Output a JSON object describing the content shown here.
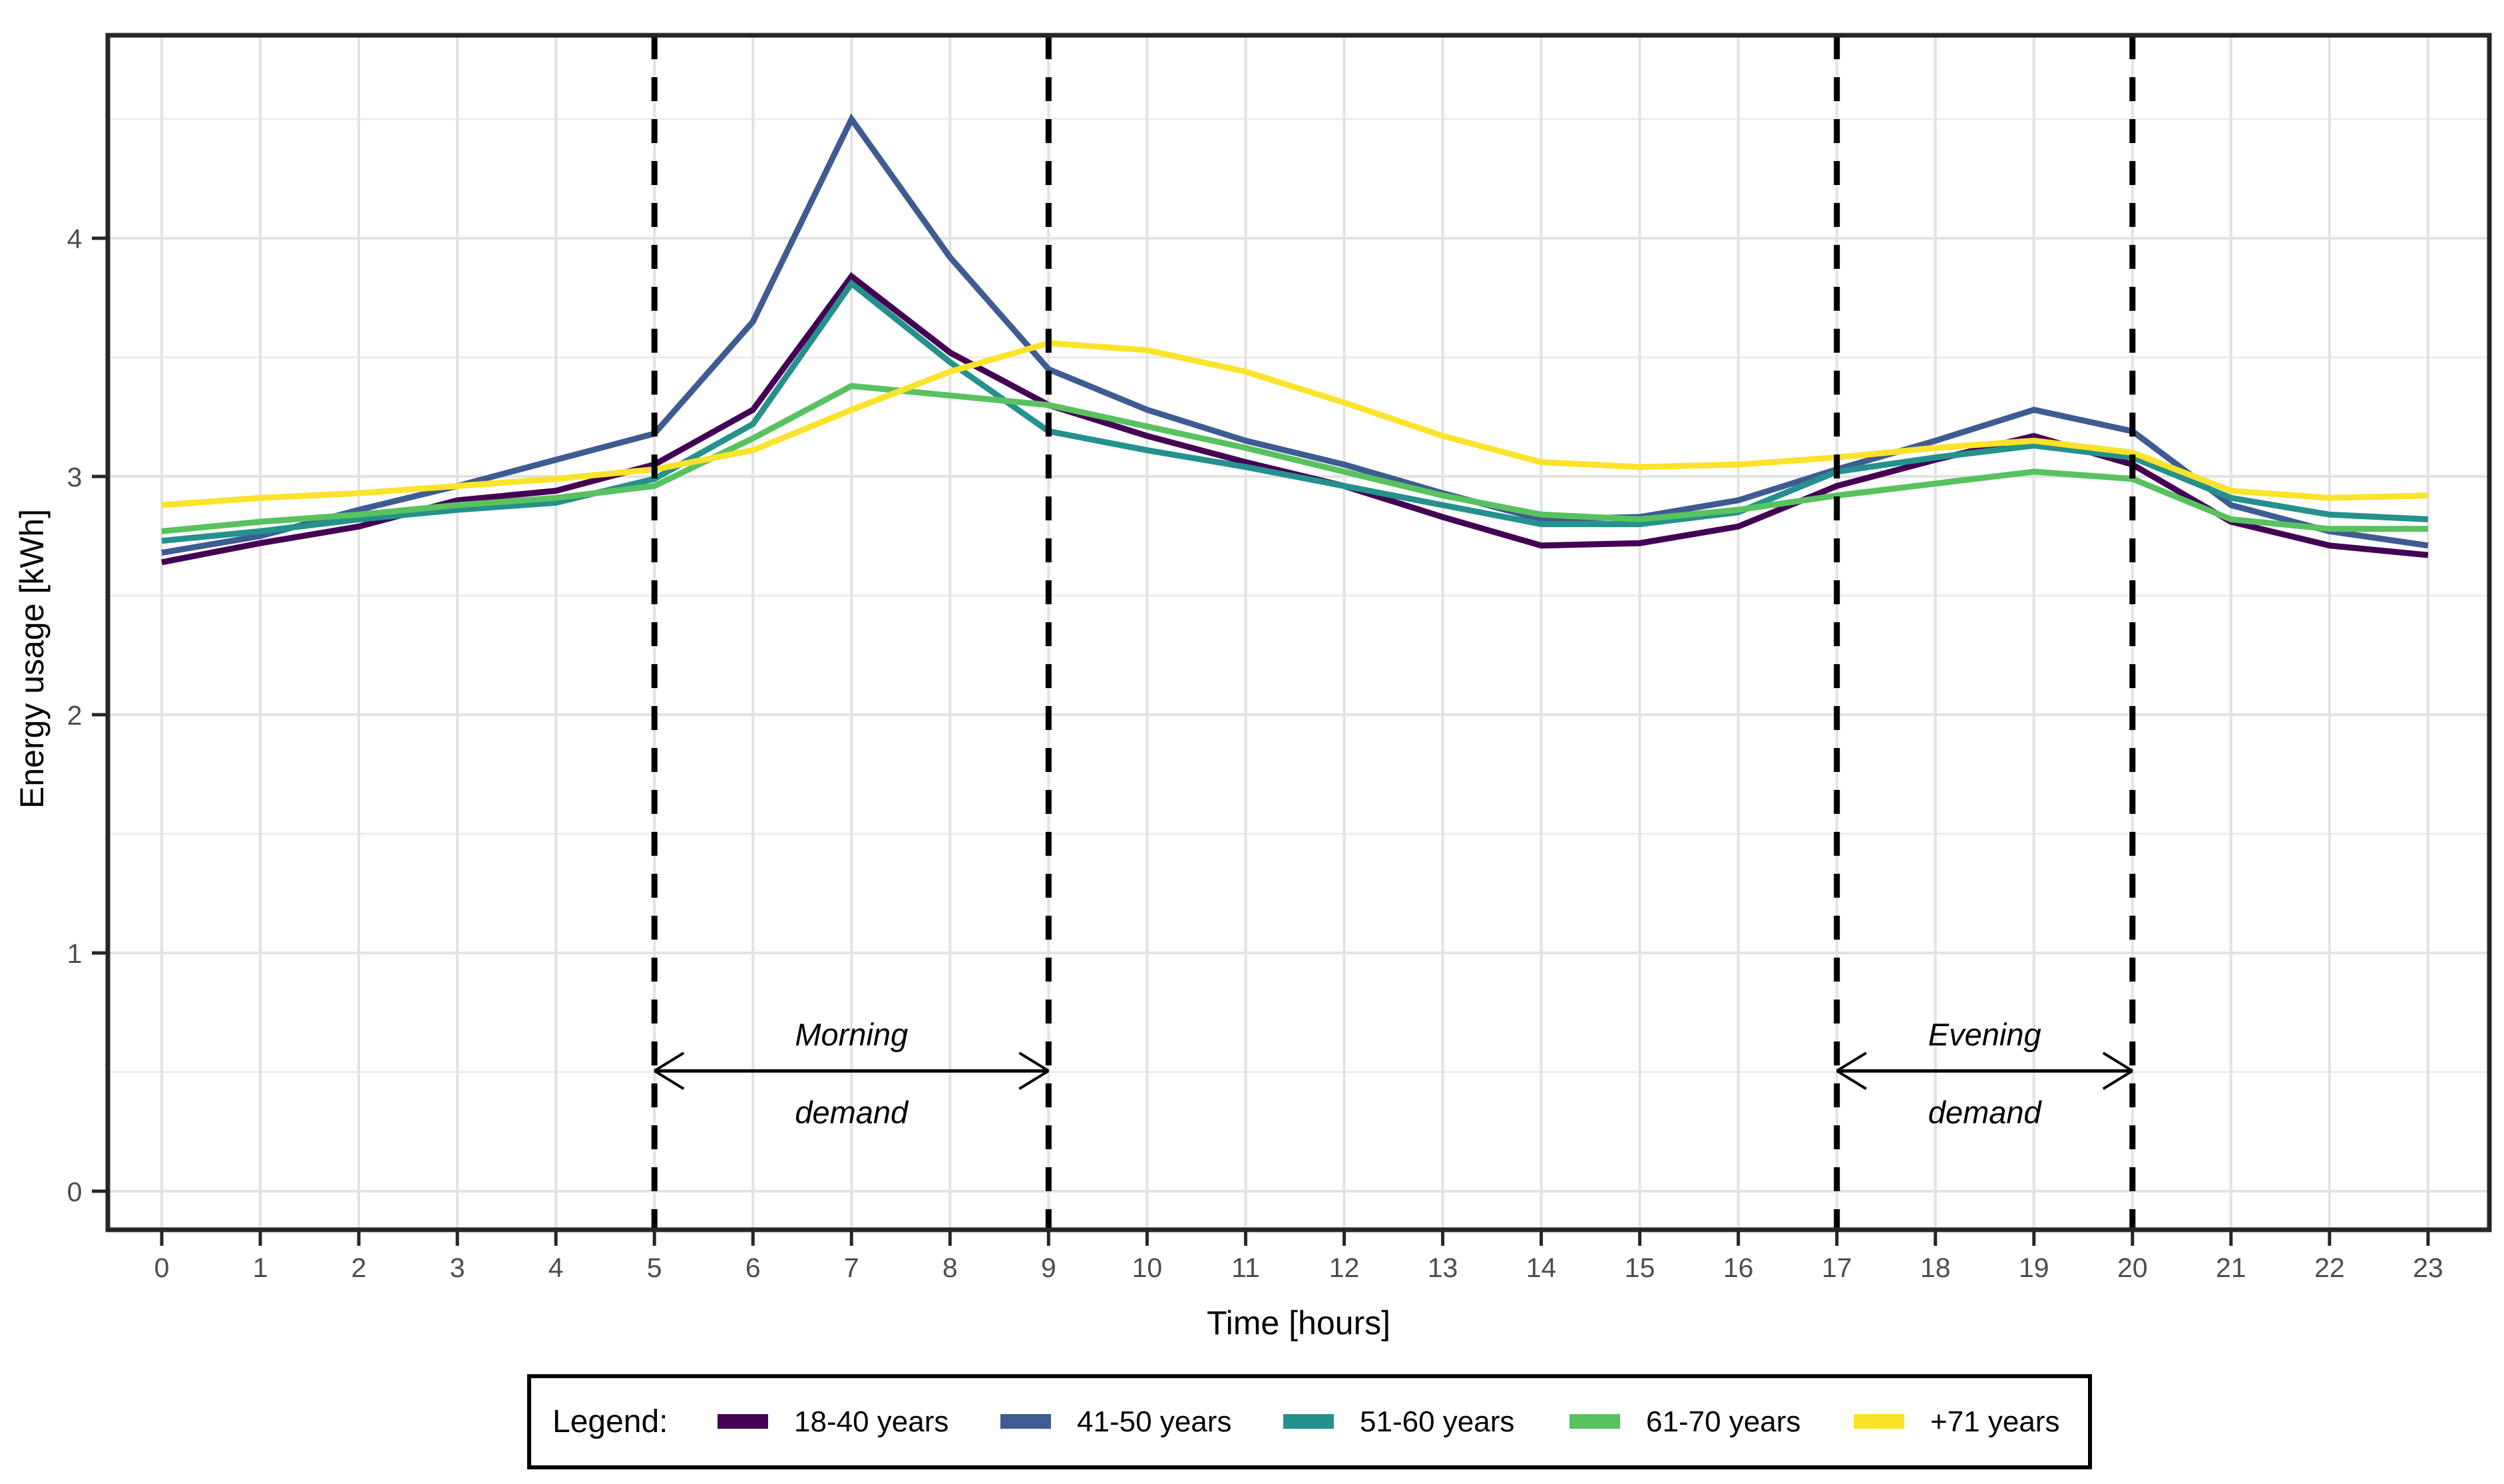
{
  "chart_data": {
    "type": "line",
    "title": "",
    "xlabel": "Time [hours]",
    "ylabel": "Energy usage [kWh]",
    "x": [
      0,
      1,
      2,
      3,
      4,
      5,
      6,
      7,
      8,
      9,
      10,
      11,
      12,
      13,
      14,
      15,
      16,
      17,
      18,
      19,
      20,
      21,
      22,
      23
    ],
    "x_tick_labels": [
      "0",
      "1",
      "2",
      "3",
      "4",
      "5",
      "6",
      "7",
      "8",
      "9",
      "10",
      "11",
      "12",
      "13",
      "14",
      "15",
      "16",
      "17",
      "18",
      "19",
      "20",
      "21",
      "22",
      "23"
    ],
    "y_ticks": [
      0,
      1,
      2,
      3,
      4
    ],
    "y_minor_gridlines": [
      0.5,
      1.5,
      2.5,
      3.5,
      4.5
    ],
    "ylim": [
      -0.16,
      4.85
    ],
    "xlim": [
      -0.55,
      23.6
    ],
    "grid": "major and minor horizontal, hourly vertical, light gray on white",
    "legend_position": "bottom",
    "series": [
      {
        "name": "18-40 years",
        "color": "#440154",
        "values": [
          2.64,
          2.72,
          2.79,
          2.9,
          2.94,
          3.05,
          3.28,
          3.84,
          3.52,
          3.3,
          3.17,
          3.06,
          2.96,
          2.83,
          2.71,
          2.72,
          2.79,
          2.96,
          3.07,
          3.17,
          3.05,
          2.81,
          2.71,
          2.67
        ]
      },
      {
        "name": "41-50 years",
        "color": "#3e5b92",
        "values": [
          2.68,
          2.75,
          2.86,
          2.96,
          3.07,
          3.18,
          3.65,
          4.5,
          3.92,
          3.45,
          3.28,
          3.15,
          3.05,
          2.93,
          2.82,
          2.83,
          2.9,
          3.03,
          3.15,
          3.28,
          3.19,
          2.88,
          2.77,
          2.71
        ]
      },
      {
        "name": "51-60 years",
        "color": "#24918c",
        "values": [
          2.73,
          2.77,
          2.82,
          2.86,
          2.89,
          2.99,
          3.22,
          3.81,
          3.48,
          3.19,
          3.11,
          3.04,
          2.96,
          2.88,
          2.8,
          2.8,
          2.85,
          3.02,
          3.08,
          3.13,
          3.08,
          2.91,
          2.84,
          2.82
        ]
      },
      {
        "name": "61-70 years",
        "color": "#58c25f",
        "values": [
          2.77,
          2.81,
          2.84,
          2.88,
          2.91,
          2.96,
          3.16,
          3.38,
          3.34,
          3.3,
          3.21,
          3.12,
          3.02,
          2.92,
          2.84,
          2.82,
          2.86,
          2.92,
          2.97,
          3.02,
          2.99,
          2.82,
          2.78,
          2.78
        ]
      },
      {
        "name": "+71 years",
        "color": "#fbe32b",
        "values": [
          2.88,
          2.91,
          2.93,
          2.96,
          2.99,
          3.03,
          3.11,
          3.28,
          3.44,
          3.56,
          3.53,
          3.44,
          3.31,
          3.17,
          3.06,
          3.04,
          3.05,
          3.08,
          3.12,
          3.15,
          3.1,
          2.94,
          2.91,
          2.92
        ]
      }
    ],
    "vlines": {
      "x": [
        5,
        9,
        17,
        20
      ],
      "style": "dashed",
      "color": "#000000"
    },
    "annotations": [
      {
        "line1": "Morning",
        "line2": "demand",
        "x_from": 5,
        "x_to": 9,
        "y": 0.505,
        "arrow": "double-headed"
      },
      {
        "line1": "Evening",
        "line2": "demand",
        "x_from": 17,
        "x_to": 20,
        "y": 0.505,
        "arrow": "double-headed"
      }
    ],
    "legend": {
      "title": "Legend:",
      "entries": [
        "18-40 years",
        "41-50 years",
        "51-60 years",
        "61-70 years",
        "+71 years"
      ]
    }
  },
  "colors": {
    "background": "#ffffff",
    "panel_border": "#262626",
    "tick_mark": "#262626",
    "tick_label": "#4d4d4d",
    "grid_major": "#e2e2e2",
    "grid_minor": "#ececec",
    "annotation": "#000000",
    "legend_border": "#000000"
  }
}
